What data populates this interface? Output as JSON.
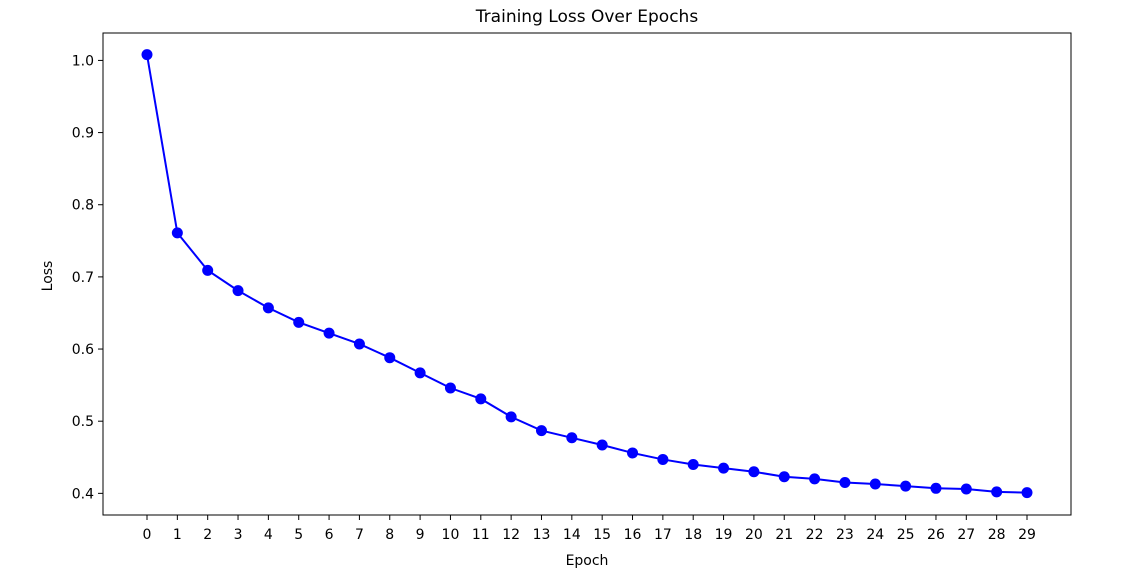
{
  "chart_data": {
    "type": "line",
    "title": "Training Loss Over Epochs",
    "xlabel": "Epoch",
    "ylabel": "Loss",
    "x": [
      0,
      1,
      2,
      3,
      4,
      5,
      6,
      7,
      8,
      9,
      10,
      11,
      12,
      13,
      14,
      15,
      16,
      17,
      18,
      19,
      20,
      21,
      22,
      23,
      24,
      25,
      26,
      27,
      28,
      29
    ],
    "series": [
      {
        "values": [
          1.008,
          0.761,
          0.709,
          0.681,
          0.657,
          0.637,
          0.622,
          0.607,
          0.588,
          0.567,
          0.546,
          0.531,
          0.506,
          0.487,
          0.477,
          0.467,
          0.456,
          0.447,
          0.44,
          0.435,
          0.43,
          0.423,
          0.42,
          0.415,
          0.413,
          0.41,
          0.407,
          0.406,
          0.402,
          0.401
        ],
        "color": "#0000ff"
      }
    ],
    "xticks": [
      "0",
      "1",
      "2",
      "3",
      "4",
      "5",
      "6",
      "7",
      "8",
      "9",
      "10",
      "11",
      "12",
      "13",
      "14",
      "15",
      "16",
      "17",
      "18",
      "19",
      "20",
      "21",
      "22",
      "23",
      "24",
      "25",
      "26",
      "27",
      "28",
      "29"
    ],
    "yticks": [
      "0.4",
      "0.5",
      "0.6",
      "0.7",
      "0.8",
      "0.9",
      "1.0"
    ],
    "xlim": [
      -1.45,
      30.45
    ],
    "ylim": [
      0.37,
      1.038
    ],
    "grid": false,
    "marker": "circle"
  }
}
